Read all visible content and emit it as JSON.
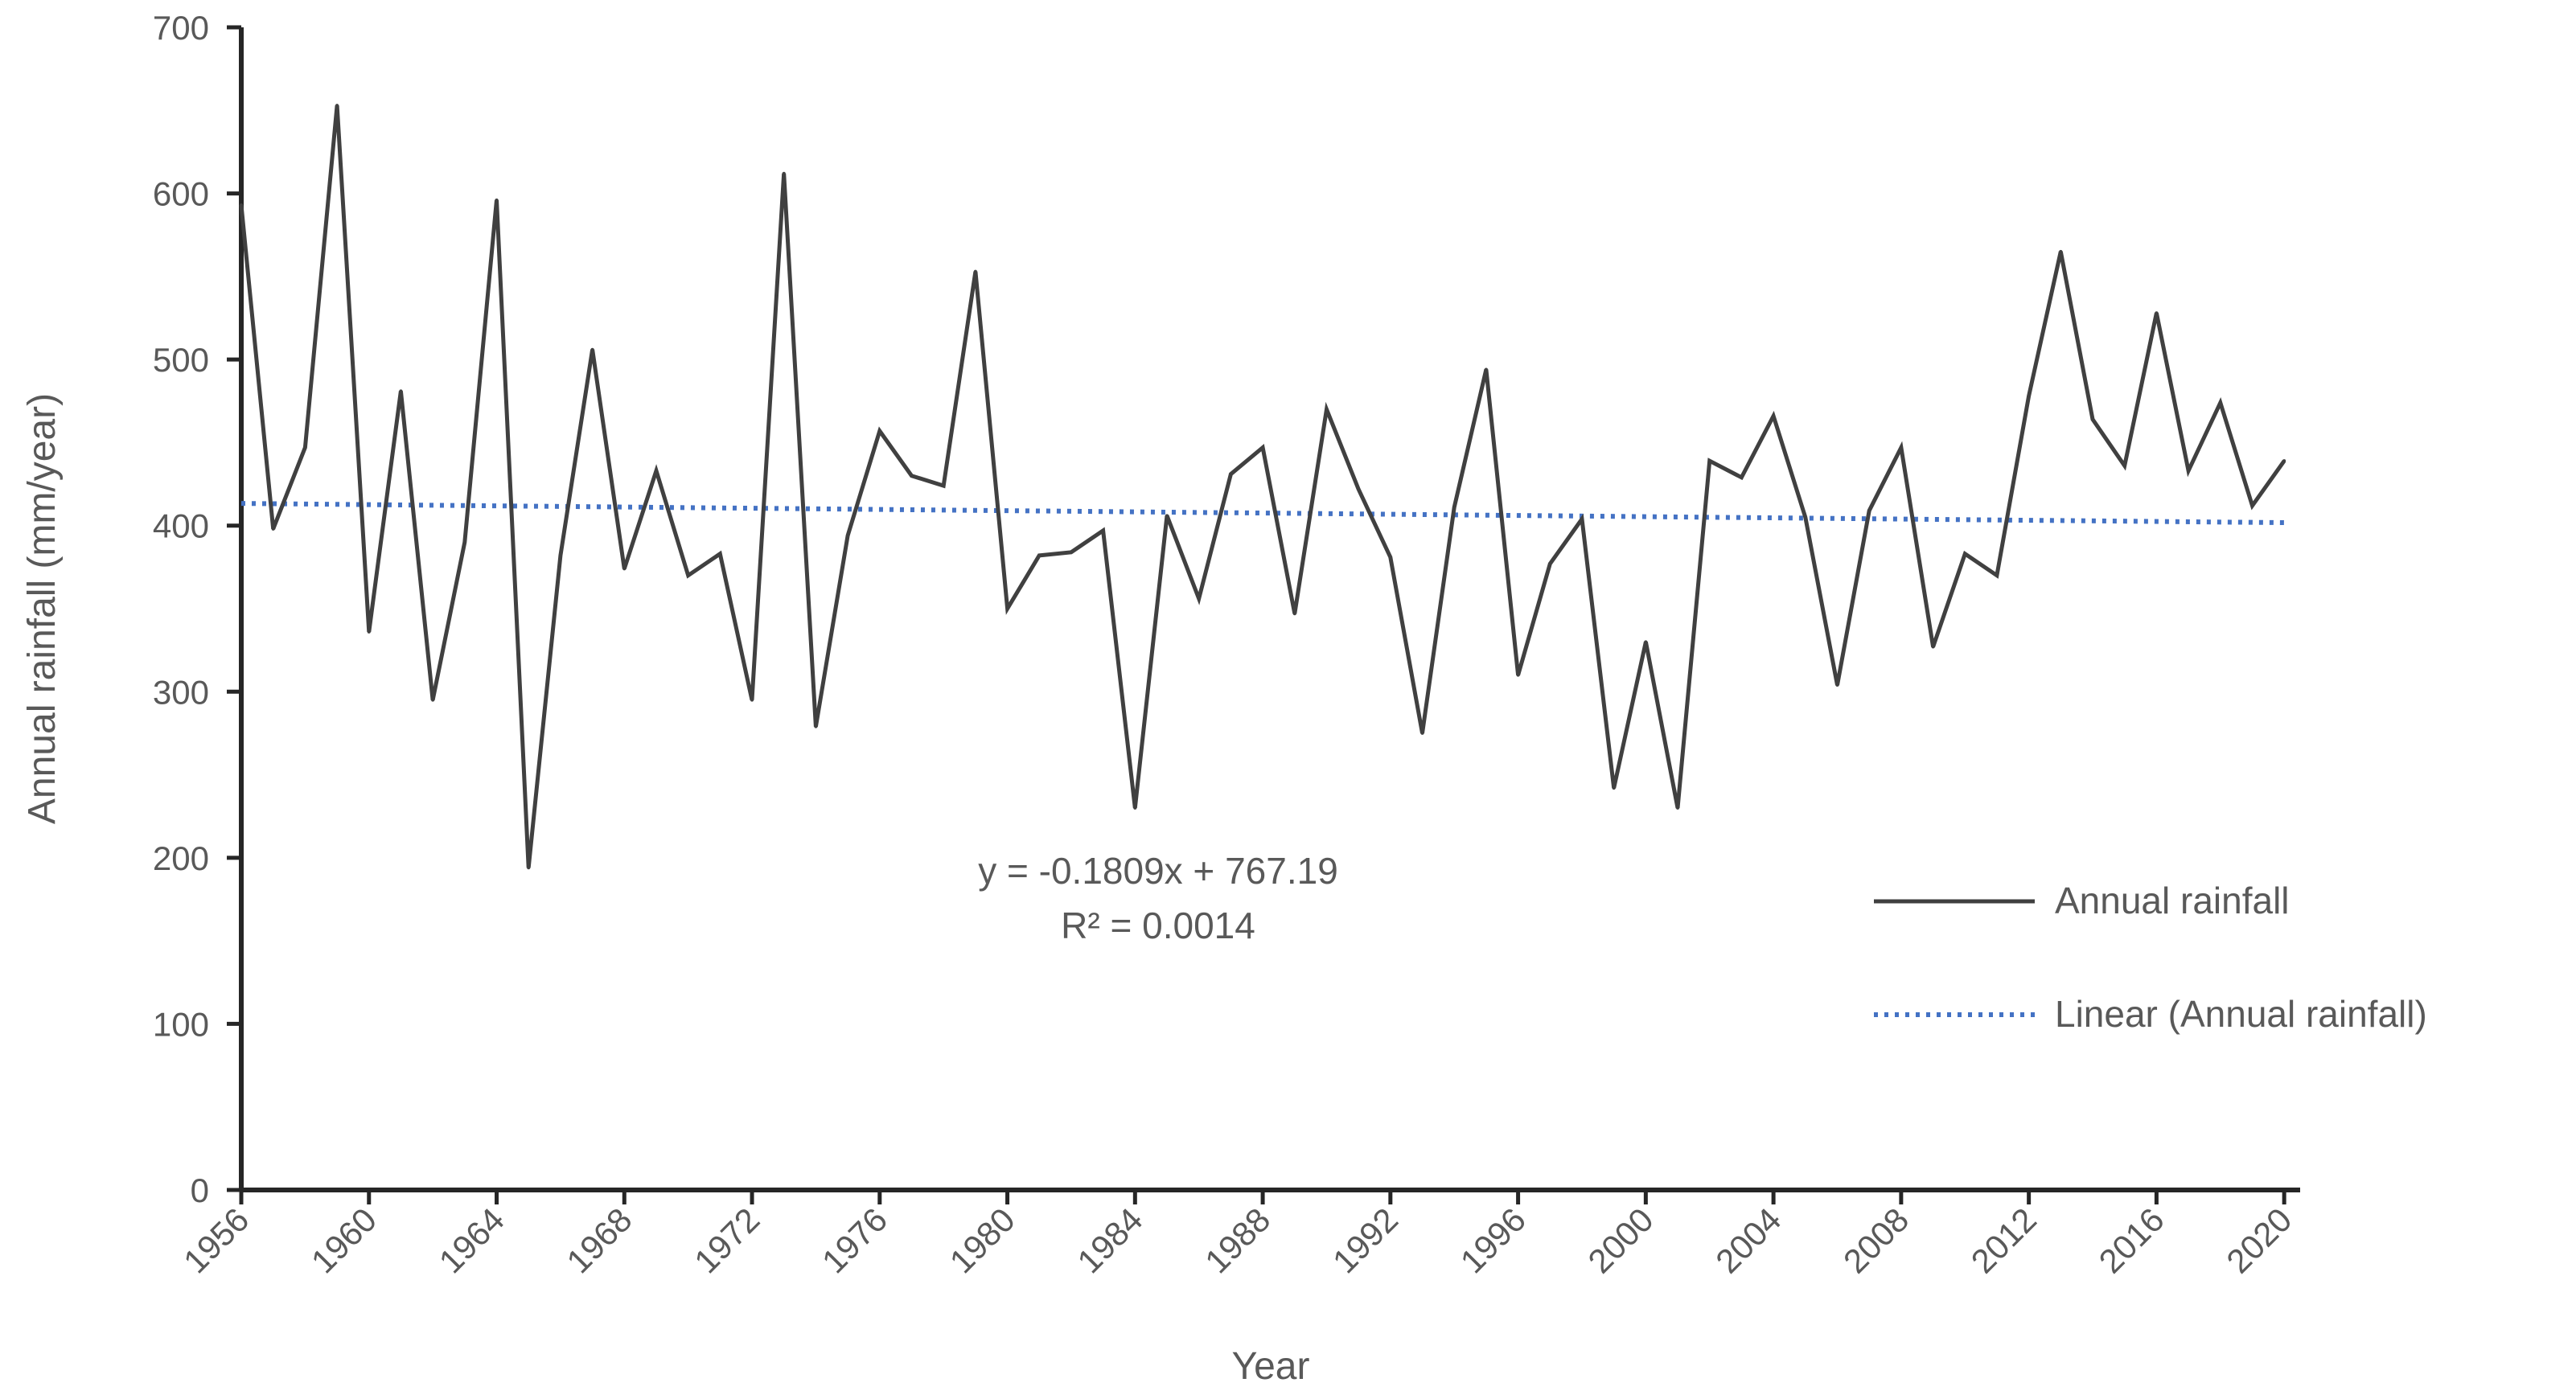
{
  "chart_data": {
    "type": "line",
    "title": "",
    "xlabel": "Year",
    "ylabel": "Annual rainfall (mm/year)",
    "ylim": [
      0,
      700
    ],
    "yticks": [
      0,
      100,
      200,
      300,
      400,
      500,
      600,
      700
    ],
    "xlim": [
      1956,
      2020.5
    ],
    "xticks": [
      1956,
      1960,
      1964,
      1968,
      1972,
      1976,
      1980,
      1984,
      1988,
      1992,
      1996,
      2000,
      2004,
      2008,
      2012,
      2016,
      2020
    ],
    "grid": false,
    "legend_position": "right",
    "series": [
      {
        "name": "Annual rainfall",
        "color": "#404040",
        "style": "solid",
        "x": [
          1956,
          1957,
          1958,
          1959,
          1960,
          1961,
          1962,
          1963,
          1964,
          1965,
          1966,
          1967,
          1968,
          1969,
          1970,
          1971,
          1972,
          1973,
          1974,
          1975,
          1976,
          1977,
          1978,
          1979,
          1980,
          1981,
          1982,
          1983,
          1984,
          1985,
          1986,
          1987,
          1988,
          1989,
          1990,
          1991,
          1992,
          1993,
          1994,
          1995,
          1996,
          1997,
          1998,
          1999,
          2000,
          2001,
          2002,
          2003,
          2004,
          2005,
          2006,
          2007,
          2008,
          2009,
          2010,
          2011,
          2012,
          2013,
          2014,
          2015,
          2016,
          2017,
          2018,
          2019,
          2020
        ],
        "values": [
          593,
          398,
          447,
          653,
          336,
          481,
          295,
          390,
          596,
          194,
          382,
          506,
          374,
          433,
          370,
          383,
          295,
          612,
          279,
          394,
          457,
          430,
          424,
          553,
          350,
          382,
          384,
          397,
          230,
          406,
          356,
          431,
          447,
          347,
          470,
          422,
          381,
          275,
          411,
          494,
          310,
          377,
          404,
          242,
          330,
          230,
          439,
          429,
          466,
          405,
          304,
          409,
          447,
          327,
          383,
          370,
          478,
          565,
          464,
          436,
          528,
          433,
          474,
          412,
          439
        ]
      },
      {
        "name": "Linear (Annual rainfall)",
        "color": "#4472C4",
        "style": "dotted",
        "trendline": {
          "slope": -0.1809,
          "intercept": 767.19,
          "x_start": 1956,
          "x_end": 2020
        }
      }
    ],
    "annotations": {
      "equation": "y = -0.1809x + 767.19",
      "r_squared": "R² = 0.0014"
    }
  }
}
